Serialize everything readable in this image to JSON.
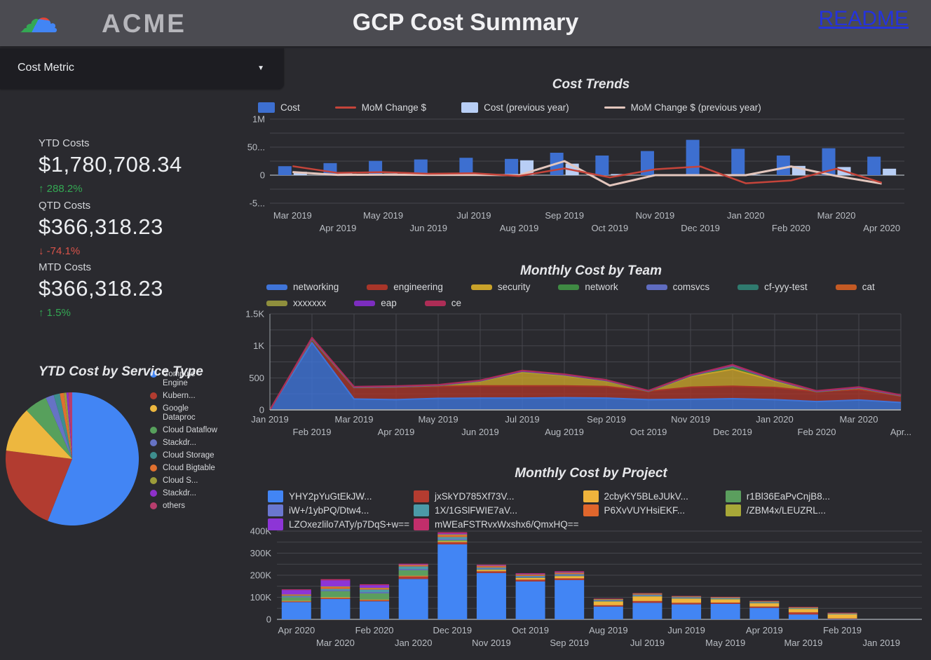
{
  "header": {
    "brand": "ACME",
    "title": "GCP Cost Summary",
    "readme_label": "README"
  },
  "filter": {
    "label": "Cost Metric"
  },
  "icons": {
    "cloud": "☁",
    "caret": "▼"
  },
  "scorecards": [
    {
      "label": "YTD Costs",
      "value": "$1,780,708.34",
      "arrow": "↑",
      "delta": "288.2%",
      "direction": "up"
    },
    {
      "label": "QTD Costs",
      "value": "$366,318.23",
      "arrow": "↓",
      "delta": "-74.1%",
      "direction": "down"
    },
    {
      "label": "MTD Costs",
      "value": "$366,318.23",
      "arrow": "↑",
      "delta": "1.5%",
      "direction": "up"
    }
  ],
  "colors": {
    "page_bg": "#2a2a2f",
    "header_bg": "#4b4b51",
    "panel_bg": "#1d1d22",
    "readme_link": "#2433dd",
    "positive": "#34a853",
    "negative": "#d9534a",
    "grid": "#45464c",
    "axis": "#9aa0a6",
    "axis_text": "#b9bdc3"
  },
  "chart_data": [
    {
      "type": "bar+line",
      "title": "Cost Trends",
      "units": "K USD",
      "categories": [
        "Mar 2019",
        "Apr 2019",
        "May 2019",
        "Jun 2019",
        "Jul 2019",
        "Aug 2019",
        "Sep 2019",
        "Oct 2019",
        "Nov 2019",
        "Dec 2019",
        "Jan 2020",
        "Feb 2020",
        "Mar 2020",
        "Apr 2020"
      ],
      "series": [
        {
          "name": "Cost",
          "type": "bar",
          "color": "#3d6fd0",
          "values": [
            160,
            215,
            255,
            280,
            310,
            290,
            400,
            350,
            430,
            630,
            470,
            350,
            480,
            330
          ]
        },
        {
          "name": "MoM Change $",
          "type": "line",
          "color": "#c5443a",
          "values": [
            160,
            40,
            55,
            25,
            35,
            -15,
            120,
            -40,
            105,
            155,
            -145,
            -95,
            115,
            -135
          ]
        },
        {
          "name": "Cost (previous year)",
          "type": "bar",
          "color": "#b8cef5",
          "values": [
            60,
            35,
            30,
            25,
            15,
            265,
            205,
            20,
            10,
            8,
            10,
            165,
            145,
            115
          ]
        },
        {
          "name": "MoM Change $ (previous year)",
          "type": "line",
          "color": "#e3c6bd",
          "values": [
            55,
            5,
            10,
            5,
            5,
            0,
            250,
            -185,
            0,
            0,
            0,
            155,
            -15,
            -150
          ]
        }
      ],
      "yticks": [
        {
          "v": 1000,
          "label": "1M"
        },
        {
          "v": 500,
          "label": "50..."
        },
        {
          "v": 0,
          "label": "0"
        },
        {
          "v": -500,
          "label": "-5..."
        }
      ],
      "grid": [
        1000,
        750,
        500,
        250,
        0,
        -250,
        -500
      ],
      "ylim": [
        -500,
        1000
      ],
      "legend_position": "top"
    },
    {
      "type": "area",
      "title": "Monthly Cost by Team",
      "units": "USD",
      "categories": [
        "Jan 2019",
        "Feb 2019",
        "Mar 2019",
        "Apr 2019",
        "May 2019",
        "Jun 2019",
        "Jul 2019",
        "Aug 2019",
        "Sep 2019",
        "Oct 2019",
        "Nov 2019",
        "Dec 2019",
        "Jan 2020",
        "Feb 2020",
        "Mar 2020",
        "Apr..."
      ],
      "series": [
        {
          "name": "networking",
          "color": "#3f74d8",
          "values": [
            0,
            1050,
            170,
            160,
            180,
            185,
            185,
            190,
            185,
            160,
            165,
            175,
            160,
            130,
            155,
            115
          ]
        },
        {
          "name": "engineering",
          "color": "#a83529",
          "values": [
            0,
            55,
            180,
            195,
            185,
            190,
            190,
            185,
            180,
            130,
            190,
            195,
            190,
            155,
            160,
            100
          ]
        },
        {
          "name": "security",
          "color": "#c9a22a",
          "values": [
            0,
            0,
            0,
            5,
            15,
            70,
            215,
            160,
            85,
            0,
            165,
            265,
            100,
            0,
            25,
            5
          ]
        },
        {
          "name": "network",
          "color": "#3f8a43",
          "values": [
            0,
            0,
            0,
            0,
            0,
            5,
            10,
            8,
            5,
            0,
            10,
            45,
            12,
            0,
            3,
            0
          ]
        },
        {
          "name": "comsvcs",
          "color": "#5f6cc0",
          "values": [
            0,
            8,
            3,
            3,
            3,
            3,
            3,
            3,
            3,
            3,
            3,
            6,
            4,
            3,
            3,
            3
          ]
        },
        {
          "name": "cf-yyy-test",
          "color": "#2f7a6e",
          "values": [
            0,
            3,
            1,
            1,
            1,
            1,
            1,
            1,
            1,
            1,
            2,
            3,
            2,
            1,
            1,
            1
          ]
        },
        {
          "name": "cat",
          "color": "#c45a24",
          "values": [
            0,
            3,
            2,
            2,
            2,
            2,
            2,
            2,
            2,
            2,
            2,
            3,
            2,
            2,
            2,
            2
          ]
        },
        {
          "name": "xxxxxxx",
          "color": "#8f8f3d",
          "values": [
            0,
            2,
            1,
            1,
            1,
            1,
            1,
            1,
            1,
            1,
            1,
            2,
            1,
            1,
            1,
            1
          ]
        },
        {
          "name": "eap",
          "color": "#7c2dbf",
          "values": [
            0,
            2,
            1,
            1,
            1,
            1,
            1,
            1,
            1,
            1,
            1,
            2,
            1,
            1,
            1,
            1
          ]
        },
        {
          "name": "ce",
          "color": "#ad2d56",
          "values": [
            0,
            7,
            5,
            5,
            5,
            5,
            8,
            8,
            6,
            4,
            6,
            10,
            8,
            5,
            8,
            5
          ]
        }
      ],
      "stacked": true,
      "yticks": [
        {
          "v": 1500,
          "label": "1.5K"
        },
        {
          "v": 1000,
          "label": "1K"
        },
        {
          "v": 500,
          "label": "500"
        },
        {
          "v": 0,
          "label": "0"
        }
      ],
      "grid": [
        0,
        250,
        500,
        750,
        1000,
        1250,
        1500
      ],
      "ylim": [
        0,
        1500
      ],
      "vertical_grid": true,
      "legend_position": "top"
    },
    {
      "type": "bar",
      "title": "Monthly Cost by Project",
      "units": "K USD",
      "categories": [
        "Apr 2020",
        "Mar 2020",
        "Feb 2020",
        "Jan 2020",
        "Dec 2019",
        "Nov 2019",
        "Oct 2019",
        "Sep 2019",
        "Aug 2019",
        "Jul 2019",
        "Jun 2019",
        "May 2019",
        "Apr 2019",
        "Mar 2019",
        "Feb 2019",
        "Jan 2019"
      ],
      "series": [
        {
          "name": "YHY2pYuGtEkJW...",
          "color": "#4285f4",
          "values": [
            78,
            92,
            82,
            183,
            340,
            210,
            172,
            178,
            58,
            75,
            68,
            70,
            52,
            22,
            2,
            0
          ]
        },
        {
          "name": "jxSkYD785Xf73V...",
          "color": "#b43c30",
          "values": [
            4,
            5,
            5,
            12,
            10,
            8,
            8,
            8,
            6,
            8,
            7,
            6,
            6,
            10,
            2,
            0
          ]
        },
        {
          "name": "2cbyKY5BLeJUkV...",
          "color": "#f0b43c",
          "values": [
            2,
            3,
            3,
            3,
            4,
            6,
            8,
            10,
            18,
            22,
            20,
            16,
            16,
            16,
            20,
            0
          ]
        },
        {
          "name": "r1Bl36EaPvCnjB8...",
          "color": "#5b9e5e",
          "values": [
            16,
            28,
            28,
            25,
            6,
            3,
            2,
            2,
            1,
            1,
            1,
            1,
            1,
            1,
            1,
            0
          ]
        },
        {
          "name": "iW+/1ybPQ/Dtw4...",
          "color": "#6a77cf",
          "values": [
            3,
            4,
            5,
            5,
            5,
            4,
            4,
            4,
            3,
            4,
            3,
            3,
            3,
            2,
            1,
            0
          ]
        },
        {
          "name": "1X/1GSlFWIE7aV...",
          "color": "#4b9aa8",
          "values": [
            4,
            6,
            12,
            12,
            8,
            4,
            3,
            3,
            2,
            2,
            2,
            1,
            1,
            1,
            1,
            0
          ]
        },
        {
          "name": "P6XvVUYHsiEKF...",
          "color": "#e0662c",
          "values": [
            4,
            8,
            6,
            6,
            8,
            6,
            5,
            5,
            3,
            4,
            2,
            2,
            2,
            1,
            1,
            0
          ]
        },
        {
          "name": "/ZBM4x/LEUZRL...",
          "color": "#a8a838",
          "values": [
            2,
            3,
            2,
            2,
            4,
            3,
            3,
            3,
            1,
            1,
            1,
            1,
            1,
            1,
            1,
            0
          ]
        },
        {
          "name": "LZOxezlilo7ATy/p7DqS+w==",
          "color": "#8d35d6",
          "values": [
            20,
            28,
            12,
            1,
            4,
            1,
            1,
            1,
            0,
            0,
            0,
            0,
            0,
            0,
            0,
            0
          ]
        },
        {
          "name": "mWEaFSTRvxWxshx6/QmxHQ==",
          "color": "#c22e6b",
          "values": [
            3,
            5,
            4,
            3,
            6,
            3,
            3,
            4,
            2,
            2,
            2,
            2,
            2,
            2,
            1,
            0
          ]
        }
      ],
      "stacked": true,
      "yticks": [
        {
          "v": 400,
          "label": "400K"
        },
        {
          "v": 300,
          "label": "300K"
        },
        {
          "v": 200,
          "label": "200K"
        },
        {
          "v": 100,
          "label": "100K"
        },
        {
          "v": 0,
          "label": "0"
        }
      ],
      "grid": [
        0,
        50,
        100,
        150,
        200,
        250,
        300,
        350,
        400
      ],
      "ylim": [
        0,
        400
      ],
      "legend_position": "top"
    },
    {
      "type": "pie",
      "title": "YTD Cost by Service Type",
      "units": "percent of YTD cost",
      "slices": [
        {
          "name": "Compute Engine",
          "color": "#4285f4",
          "value_pct": 56
        },
        {
          "name": "Kubern...",
          "color": "#b23c30",
          "value_pct": 21
        },
        {
          "name": "Google Dataproc",
          "color": "#edb73f",
          "value_pct": 11
        },
        {
          "name": "Cloud Dataflow",
          "color": "#57a05c",
          "value_pct": 5.5
        },
        {
          "name": "Stackdr...",
          "color": "#6673c5",
          "value_pct": 2
        },
        {
          "name": "Cloud Storage",
          "color": "#3e8e8e",
          "value_pct": 1.5
        },
        {
          "name": "Cloud Bigtable",
          "color": "#e0702f",
          "value_pct": 1
        },
        {
          "name": "Cloud S...",
          "color": "#9c9c3a",
          "value_pct": 0.6
        },
        {
          "name": "Stackdr...",
          "color": "#8e30c9",
          "value_pct": 0.5
        },
        {
          "name": "others",
          "color": "#b73d6d",
          "value_pct": 0.9
        }
      ],
      "legend_position": "right"
    }
  ]
}
